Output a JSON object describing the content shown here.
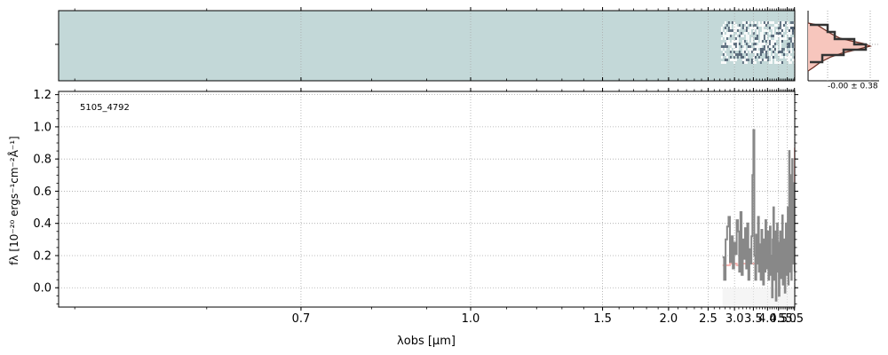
{
  "figure": {
    "object_id": "5105_4792",
    "profile_label": "-0.00 ± 0.38"
  },
  "colors": {
    "spectrum": "#888888",
    "model": "#f4a7a3",
    "twod_background": "#c3d8d8",
    "twod_dark": "#1b2a45",
    "profile_fill": "#f7c6bd",
    "profile_line": "#6b2a1f",
    "profile_data": "#333333",
    "grid": "#aaaaaa"
  },
  "chart_data": {
    "type": "line",
    "xlabel": "λobs [μm]",
    "ylabel": "fλ [10⁻²⁰ ergs⁻¹cm⁻²Å⁻¹]",
    "xscale": "reciprocal",
    "xlim": [
      0.49,
      5.52
    ],
    "ylim": [
      -0.12,
      1.22
    ],
    "xticks": [
      0.7,
      1.0,
      1.5,
      2.0,
      2.5,
      3.0,
      3.5,
      4.0,
      4.5,
      5.0,
      5.5
    ],
    "xtick_labels": [
      "0.7",
      "1.0",
      "1.5",
      "2.0",
      "2.5",
      "3.0",
      "3.5",
      "4.0",
      "4.5",
      "5.0",
      "5.5"
    ],
    "yticks": [
      0.0,
      0.2,
      0.4,
      0.6,
      0.8,
      1.0,
      1.2
    ],
    "ytick_labels": [
      "0.0",
      "0.2",
      "0.4",
      "0.6",
      "0.8",
      "1.0",
      "1.2"
    ],
    "grid": true,
    "series": [
      {
        "style": "step",
        "x": [
          2.75,
          2.78,
          2.81,
          2.84,
          2.87,
          2.9,
          2.93,
          2.96,
          2.99,
          3.02,
          3.05,
          3.08,
          3.11,
          3.14,
          3.17,
          3.2,
          3.23,
          3.26,
          3.29,
          3.32,
          3.35,
          3.38,
          3.41,
          3.44,
          3.47,
          3.5,
          3.53,
          3.56,
          3.59,
          3.62,
          3.65,
          3.68,
          3.71,
          3.74,
          3.77,
          3.8,
          3.83,
          3.86,
          3.89,
          3.92,
          3.95,
          3.98,
          4.01,
          4.04,
          4.07,
          4.1,
          4.13,
          4.16,
          4.19,
          4.22,
          4.25,
          4.28,
          4.31,
          4.34,
          4.37,
          4.4,
          4.43,
          4.46,
          4.49,
          4.52,
          4.55,
          4.58,
          4.61,
          4.64,
          4.67,
          4.7,
          4.73,
          4.76,
          4.79,
          4.82,
          4.85,
          4.88,
          4.91,
          4.94,
          4.97,
          5.0,
          5.03,
          5.06,
          5.09,
          5.12,
          5.15,
          5.18,
          5.21,
          5.24,
          5.27,
          5.3,
          5.33,
          5.36,
          5.39,
          5.42,
          5.45,
          5.48,
          5.51
        ],
        "y": [
          0.19,
          0.05,
          0.3,
          0.38,
          0.44,
          0.16,
          0.32,
          0.12,
          0.28,
          0.21,
          0.42,
          0.35,
          0.1,
          0.47,
          0.08,
          0.3,
          0.18,
          0.37,
          0.12,
          0.4,
          0.05,
          0.24,
          0.15,
          0.32,
          0.7,
          0.98,
          0.2,
          0.05,
          0.33,
          0.15,
          0.44,
          0.1,
          0.27,
          0.05,
          0.36,
          0.18,
          0.02,
          0.3,
          0.1,
          0.42,
          0.2,
          0.12,
          0.35,
          0.05,
          0.25,
          0.38,
          0.08,
          0.2,
          -0.06,
          0.3,
          0.5,
          0.05,
          0.18,
          0.35,
          -0.08,
          0.22,
          0.4,
          0.1,
          0.28,
          -0.05,
          0.15,
          0.35,
          0.06,
          0.3,
          0.18,
          0.45,
          0.02,
          0.25,
          0.12,
          0.3,
          -0.03,
          0.2,
          0.4,
          0.08,
          0.32,
          0.15,
          0.5,
          0.02,
          0.28,
          0.85,
          0.1,
          0.45,
          0.3,
          0.7,
          0.05,
          0.38,
          0.8,
          0.15,
          0.52,
          0.25,
          0.65,
          0.45,
          0.1
        ]
      },
      {
        "style": "step",
        "x": [
          2.75,
          2.9,
          3.05,
          3.2,
          3.35,
          3.5,
          3.65,
          3.8,
          3.95,
          4.1,
          4.25,
          4.4,
          4.55,
          4.7,
          4.85,
          5.0,
          5.1,
          5.2,
          5.3,
          5.4,
          5.46,
          5.5,
          5.52
        ],
        "y": [
          0.14,
          0.15,
          0.14,
          0.15,
          0.15,
          0.15,
          0.16,
          0.16,
          0.16,
          0.17,
          0.18,
          0.19,
          0.2,
          0.22,
          0.23,
          0.25,
          0.27,
          0.3,
          0.32,
          0.35,
          0.42,
          0.55,
          0.87
        ]
      }
    ]
  }
}
